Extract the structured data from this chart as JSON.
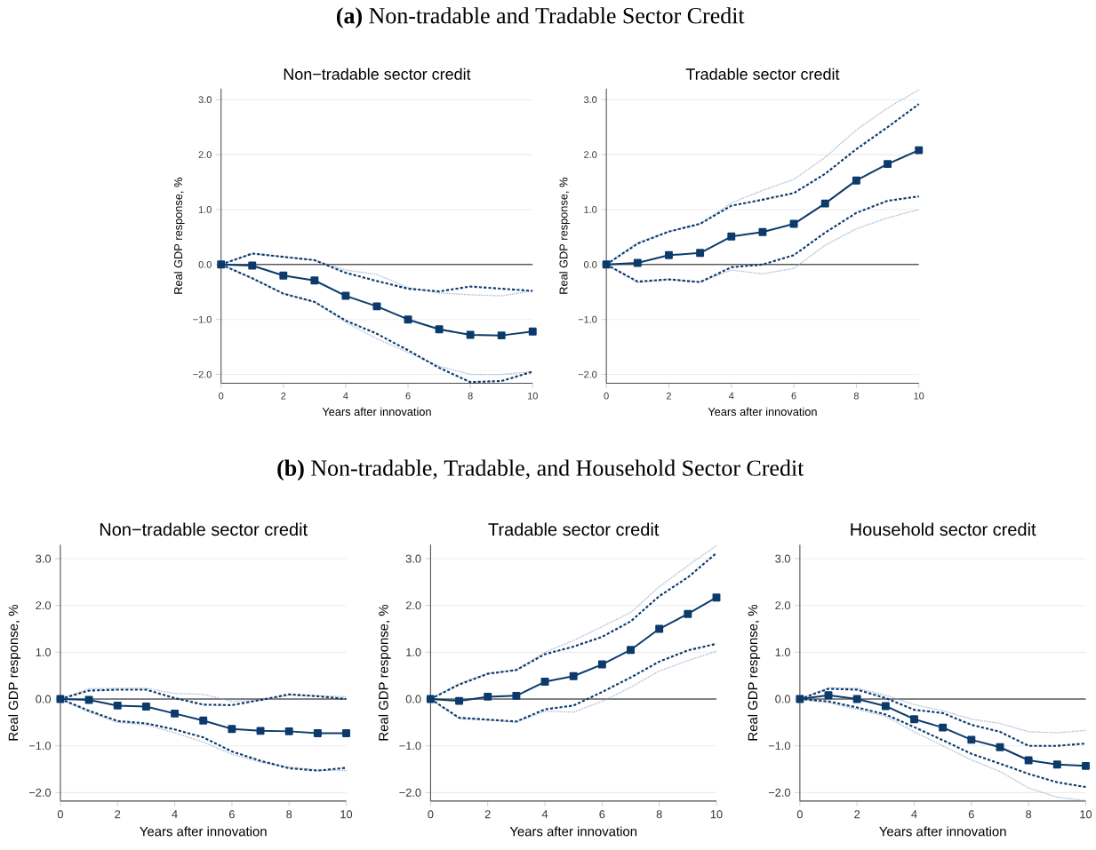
{
  "chart_data": [
    {
      "type": "line",
      "title": "Non−tradable sector credit",
      "xlabel": "Years after innovation",
      "ylabel": "Real GDP response, %",
      "annotations": [
        "**(a)** Non-tradable and Tradable Sector Credit"
      ],
      "x": [
        0,
        1,
        2,
        3,
        4,
        5,
        6,
        7,
        8,
        9,
        10
      ],
      "xlim": [
        0,
        10
      ],
      "xticks": [
        0,
        2,
        4,
        6,
        8,
        10
      ],
      "ylim": [
        -2.16,
        3.2
      ],
      "yticks": [
        {
          "value": -2,
          "label": "−2.0"
        },
        {
          "value": -1,
          "label": "−1.0"
        },
        {
          "value": 0,
          "label": "0.0"
        },
        {
          "value": 1,
          "label": "1.0"
        },
        {
          "value": 2,
          "label": "2.0"
        },
        {
          "value": 3,
          "label": "3.0"
        }
      ],
      "grid": "y",
      "ref_lines": [
        {
          "axis": "y",
          "value": 0,
          "color": "#000000"
        }
      ],
      "series": [
        {
          "color": "#8fa3c4",
          "line_style": "dotted",
          "marker": "none",
          "values": [
            0,
            0.2,
            0.14,
            0.08,
            -0.1,
            -0.18,
            -0.42,
            -0.52,
            -0.55,
            -0.57,
            -0.48
          ]
        },
        {
          "color": "#8fa3c4",
          "line_style": "dotted",
          "marker": "none",
          "values": [
            0,
            -0.25,
            -0.53,
            -0.68,
            -1.05,
            -1.35,
            -1.6,
            -1.85,
            -2.0,
            -2.0,
            -1.95
          ]
        },
        {
          "color": "#0b3a6b",
          "line_style": "dashed",
          "marker": "none",
          "values": [
            0,
            0.2,
            0.14,
            0.08,
            -0.15,
            -0.3,
            -0.44,
            -0.49,
            -0.4,
            -0.44,
            -0.48
          ]
        },
        {
          "color": "#0b3a6b",
          "line_style": "dashed",
          "marker": "none",
          "values": [
            0,
            -0.25,
            -0.53,
            -0.68,
            -1.02,
            -1.26,
            -1.56,
            -1.88,
            -2.14,
            -2.12,
            -1.95
          ]
        },
        {
          "color": "#0b3a6b",
          "line_style": "solid",
          "marker": "square",
          "values": [
            0,
            -0.02,
            -0.2,
            -0.29,
            -0.57,
            -0.76,
            -1.0,
            -1.18,
            -1.28,
            -1.29,
            -1.22
          ]
        }
      ]
    },
    {
      "type": "line",
      "title": "Tradable sector credit",
      "xlabel": "Years after innovation",
      "ylabel": "Real GDP response, %",
      "x": [
        0,
        1,
        2,
        3,
        4,
        5,
        6,
        7,
        8,
        9,
        10
      ],
      "xlim": [
        0,
        10
      ],
      "xticks": [
        0,
        2,
        4,
        6,
        8,
        10
      ],
      "ylim": [
        -2.16,
        3.2
      ],
      "yticks": [
        {
          "value": -2,
          "label": "−2.0"
        },
        {
          "value": -1,
          "label": "−1.0"
        },
        {
          "value": 0,
          "label": "0.0"
        },
        {
          "value": 1,
          "label": "1.0"
        },
        {
          "value": 2,
          "label": "2.0"
        },
        {
          "value": 3,
          "label": "3.0"
        }
      ],
      "grid": "y",
      "ref_lines": [
        {
          "axis": "y",
          "value": 0,
          "color": "#000000"
        }
      ],
      "series": [
        {
          "color": "#8fa3c4",
          "line_style": "dotted",
          "marker": "none",
          "values": [
            0,
            0.4,
            0.6,
            0.74,
            1.12,
            1.35,
            1.55,
            1.95,
            2.45,
            2.85,
            3.18
          ]
        },
        {
          "color": "#8fa3c4",
          "line_style": "dotted",
          "marker": "none",
          "values": [
            0,
            -0.33,
            -0.27,
            -0.32,
            -0.1,
            -0.17,
            -0.07,
            0.35,
            0.65,
            0.85,
            1.0
          ]
        },
        {
          "color": "#0b3a6b",
          "line_style": "dashed",
          "marker": "none",
          "values": [
            0,
            0.38,
            0.6,
            0.74,
            1.07,
            1.18,
            1.3,
            1.65,
            2.1,
            2.5,
            2.92
          ]
        },
        {
          "color": "#0b3a6b",
          "line_style": "dashed",
          "marker": "none",
          "values": [
            0,
            -0.31,
            -0.27,
            -0.32,
            -0.05,
            0.0,
            0.17,
            0.58,
            0.94,
            1.16,
            1.24
          ]
        },
        {
          "color": "#0b3a6b",
          "line_style": "solid",
          "marker": "square",
          "values": [
            0,
            0.03,
            0.17,
            0.21,
            0.51,
            0.59,
            0.74,
            1.11,
            1.53,
            1.83,
            2.08
          ]
        }
      ]
    },
    {
      "type": "line",
      "title": "Non−tradable sector credit",
      "xlabel": "Years after innovation",
      "ylabel": "Real GDP response, %",
      "annotations": [
        "**(b)** Non-tradable, Tradable, and Household Sector Credit"
      ],
      "x": [
        0,
        1,
        2,
        3,
        4,
        5,
        6,
        7,
        8,
        9,
        10
      ],
      "xlim": [
        0,
        10
      ],
      "xticks": [
        0,
        2,
        4,
        6,
        8,
        10
      ],
      "ylim": [
        -2.18,
        3.3
      ],
      "yticks": [
        {
          "value": -2,
          "label": "−2.0"
        },
        {
          "value": -1,
          "label": "−1.0"
        },
        {
          "value": 0,
          "label": "0.0"
        },
        {
          "value": 1,
          "label": "1.0"
        },
        {
          "value": 2,
          "label": "2.0"
        },
        {
          "value": 3,
          "label": "3.0"
        }
      ],
      "grid": "y",
      "ref_lines": [
        {
          "axis": "y",
          "value": 0,
          "color": "#000000"
        }
      ],
      "series": [
        {
          "color": "#8fa3c4",
          "line_style": "dotted",
          "marker": "none",
          "values": [
            0,
            0.22,
            0.23,
            0.23,
            0.12,
            0.1,
            -0.05,
            -0.03,
            0.08,
            0.07,
            0.05
          ]
        },
        {
          "color": "#8fa3c4",
          "line_style": "dotted",
          "marker": "none",
          "values": [
            0,
            -0.28,
            -0.5,
            -0.55,
            -0.72,
            -0.92,
            -1.18,
            -1.35,
            -1.45,
            -1.52,
            -1.53
          ]
        },
        {
          "color": "#0b3a6b",
          "line_style": "dashed",
          "marker": "none",
          "values": [
            0,
            0.18,
            0.2,
            0.2,
            0.02,
            -0.12,
            -0.13,
            -0.02,
            0.1,
            0.06,
            0.0
          ]
        },
        {
          "color": "#0b3a6b",
          "line_style": "dashed",
          "marker": "none",
          "values": [
            0,
            -0.25,
            -0.47,
            -0.52,
            -0.65,
            -0.82,
            -1.12,
            -1.32,
            -1.48,
            -1.53,
            -1.47
          ]
        },
        {
          "color": "#0b3a6b",
          "line_style": "solid",
          "marker": "square",
          "values": [
            0,
            -0.02,
            -0.14,
            -0.16,
            -0.31,
            -0.46,
            -0.64,
            -0.68,
            -0.69,
            -0.73,
            -0.73
          ]
        }
      ]
    },
    {
      "type": "line",
      "title": "Tradable sector credit",
      "xlabel": "Years after innovation",
      "ylabel": "Real GDP response, %",
      "x": [
        0,
        1,
        2,
        3,
        4,
        5,
        6,
        7,
        8,
        9,
        10
      ],
      "xlim": [
        0,
        10
      ],
      "xticks": [
        0,
        2,
        4,
        6,
        8,
        10
      ],
      "ylim": [
        -2.18,
        3.3
      ],
      "yticks": [
        {
          "value": -2,
          "label": "−2.0"
        },
        {
          "value": -1,
          "label": "−1.0"
        },
        {
          "value": 0,
          "label": "0.0"
        },
        {
          "value": 1,
          "label": "1.0"
        },
        {
          "value": 2,
          "label": "2.0"
        },
        {
          "value": 3,
          "label": "3.0"
        }
      ],
      "grid": "y",
      "ref_lines": [
        {
          "axis": "y",
          "value": 0,
          "color": "#000000"
        }
      ],
      "series": [
        {
          "color": "#8fa3c4",
          "line_style": "dotted",
          "marker": "none",
          "values": [
            0,
            0.33,
            0.55,
            0.62,
            1.0,
            1.25,
            1.55,
            1.85,
            2.4,
            2.85,
            3.28
          ]
        },
        {
          "color": "#8fa3c4",
          "line_style": "dotted",
          "marker": "none",
          "values": [
            0,
            -0.42,
            -0.45,
            -0.5,
            -0.26,
            -0.28,
            -0.05,
            0.25,
            0.6,
            0.82,
            1.02
          ]
        },
        {
          "color": "#0b3a6b",
          "line_style": "dashed",
          "marker": "none",
          "values": [
            0,
            0.31,
            0.54,
            0.62,
            0.96,
            1.12,
            1.33,
            1.66,
            2.2,
            2.6,
            3.12
          ]
        },
        {
          "color": "#0b3a6b",
          "line_style": "dashed",
          "marker": "none",
          "values": [
            0,
            -0.4,
            -0.44,
            -0.48,
            -0.22,
            -0.14,
            0.15,
            0.46,
            0.8,
            1.04,
            1.18
          ]
        },
        {
          "color": "#0b3a6b",
          "line_style": "solid",
          "marker": "square",
          "values": [
            0,
            -0.04,
            0.05,
            0.07,
            0.37,
            0.49,
            0.74,
            1.05,
            1.5,
            1.82,
            2.17
          ]
        }
      ]
    },
    {
      "type": "line",
      "title": "Household sector credit",
      "xlabel": "Years after innovation",
      "ylabel": "Real GDP response, %",
      "x": [
        0,
        1,
        2,
        3,
        4,
        5,
        6,
        7,
        8,
        9,
        10
      ],
      "xlim": [
        0,
        10
      ],
      "xticks": [
        0,
        2,
        4,
        6,
        8,
        10
      ],
      "ylim": [
        -2.18,
        3.3
      ],
      "yticks": [
        {
          "value": -2,
          "label": "−2.0"
        },
        {
          "value": -1,
          "label": "−1.0"
        },
        {
          "value": 0,
          "label": "0.0"
        },
        {
          "value": 1,
          "label": "1.0"
        },
        {
          "value": 2,
          "label": "2.0"
        },
        {
          "value": 3,
          "label": "3.0"
        }
      ],
      "grid": "y",
      "ref_lines": [
        {
          "axis": "y",
          "value": 0,
          "color": "#000000"
        }
      ],
      "series": [
        {
          "color": "#8fa3c4",
          "line_style": "dotted",
          "marker": "none",
          "values": [
            0,
            0.24,
            0.23,
            0.08,
            -0.12,
            -0.25,
            -0.43,
            -0.52,
            -0.7,
            -0.72,
            -0.67
          ]
        },
        {
          "color": "#8fa3c4",
          "line_style": "dotted",
          "marker": "none",
          "values": [
            0,
            -0.08,
            -0.22,
            -0.37,
            -0.7,
            -1.0,
            -1.3,
            -1.55,
            -1.9,
            -2.1,
            -2.17
          ]
        },
        {
          "color": "#0b3a6b",
          "line_style": "dashed",
          "marker": "none",
          "values": [
            0,
            0.22,
            0.2,
            0.02,
            -0.23,
            -0.3,
            -0.55,
            -0.7,
            -1.0,
            -1.0,
            -0.95
          ]
        },
        {
          "color": "#0b3a6b",
          "line_style": "dashed",
          "marker": "none",
          "values": [
            0,
            -0.05,
            -0.18,
            -0.33,
            -0.6,
            -0.88,
            -1.17,
            -1.38,
            -1.6,
            -1.78,
            -1.88
          ]
        },
        {
          "color": "#0b3a6b",
          "line_style": "solid",
          "marker": "square",
          "values": [
            0,
            0.08,
            0.0,
            -0.15,
            -0.43,
            -0.61,
            -0.87,
            -1.03,
            -1.31,
            -1.4,
            -1.43
          ]
        }
      ]
    }
  ]
}
